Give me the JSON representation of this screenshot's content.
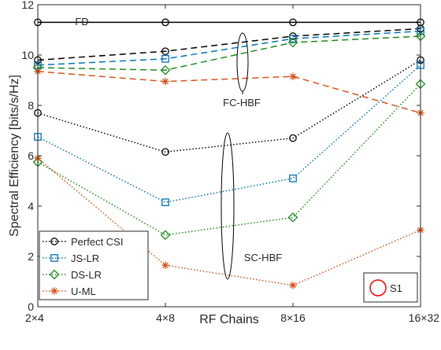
{
  "chart_data": {
    "type": "line",
    "xlabel": "RF Chains",
    "ylabel": "Spectral Efficiency [bits/s/Hz]",
    "categories": [
      "2×4",
      "4×8",
      "8×16",
      "16×32"
    ],
    "ylim": [
      0,
      12
    ],
    "yticks": [
      0,
      2,
      4,
      6,
      8,
      10,
      12
    ],
    "grid": false,
    "legend_position": "bottom-left",
    "series": [
      {
        "key": "fd",
        "values": [
          11.3,
          11.3,
          11.3,
          11.3
        ],
        "color": "#000000",
        "dash": "solid",
        "marker": "circle",
        "in_legend": false
      },
      {
        "key": "fc_perfect",
        "values": [
          9.8,
          10.15,
          10.75,
          11.05
        ],
        "color": "#000000",
        "dash": "dashed",
        "marker": "circle",
        "in_legend": false
      },
      {
        "key": "fc_js",
        "values": [
          9.6,
          9.85,
          10.65,
          10.95
        ],
        "color": "#0072BD",
        "dash": "dashed",
        "marker": "square",
        "in_legend": false
      },
      {
        "key": "fc_ds",
        "values": [
          9.5,
          9.4,
          10.5,
          10.75
        ],
        "color": "#1A8C1A",
        "dash": "dashed",
        "marker": "diamond",
        "in_legend": false
      },
      {
        "key": "fc_uml",
        "values": [
          9.35,
          8.95,
          9.15,
          7.7
        ],
        "color": "#D95319",
        "dash": "dashed",
        "marker": "asterisk",
        "in_legend": false
      },
      {
        "key": "sc_perfect",
        "name": "Perfect CSI",
        "values": [
          7.7,
          6.15,
          6.7,
          9.8
        ],
        "color": "#000000",
        "dash": "dotted",
        "marker": "circle",
        "in_legend": true
      },
      {
        "key": "sc_js",
        "name": "JS-LR",
        "values": [
          6.75,
          4.15,
          5.1,
          9.6
        ],
        "color": "#0072BD",
        "dash": "dotted",
        "marker": "square",
        "in_legend": true
      },
      {
        "key": "sc_ds",
        "name": "DS-LR",
        "values": [
          5.75,
          2.85,
          3.55,
          8.85
        ],
        "color": "#1A8C1A",
        "dash": "dotted",
        "marker": "diamond",
        "in_legend": true
      },
      {
        "key": "sc_uml",
        "name": "U-ML",
        "values": [
          5.9,
          1.65,
          0.85,
          3.05
        ],
        "color": "#D95319",
        "dash": "dotted",
        "marker": "asterisk",
        "in_legend": true
      }
    ],
    "annotations": {
      "fd_label": "FD",
      "fc_label": "FC-HBF",
      "sc_label": "SC-HBF",
      "scenario_label": "S1",
      "scenario_marker_color": "#FF0000"
    }
  }
}
